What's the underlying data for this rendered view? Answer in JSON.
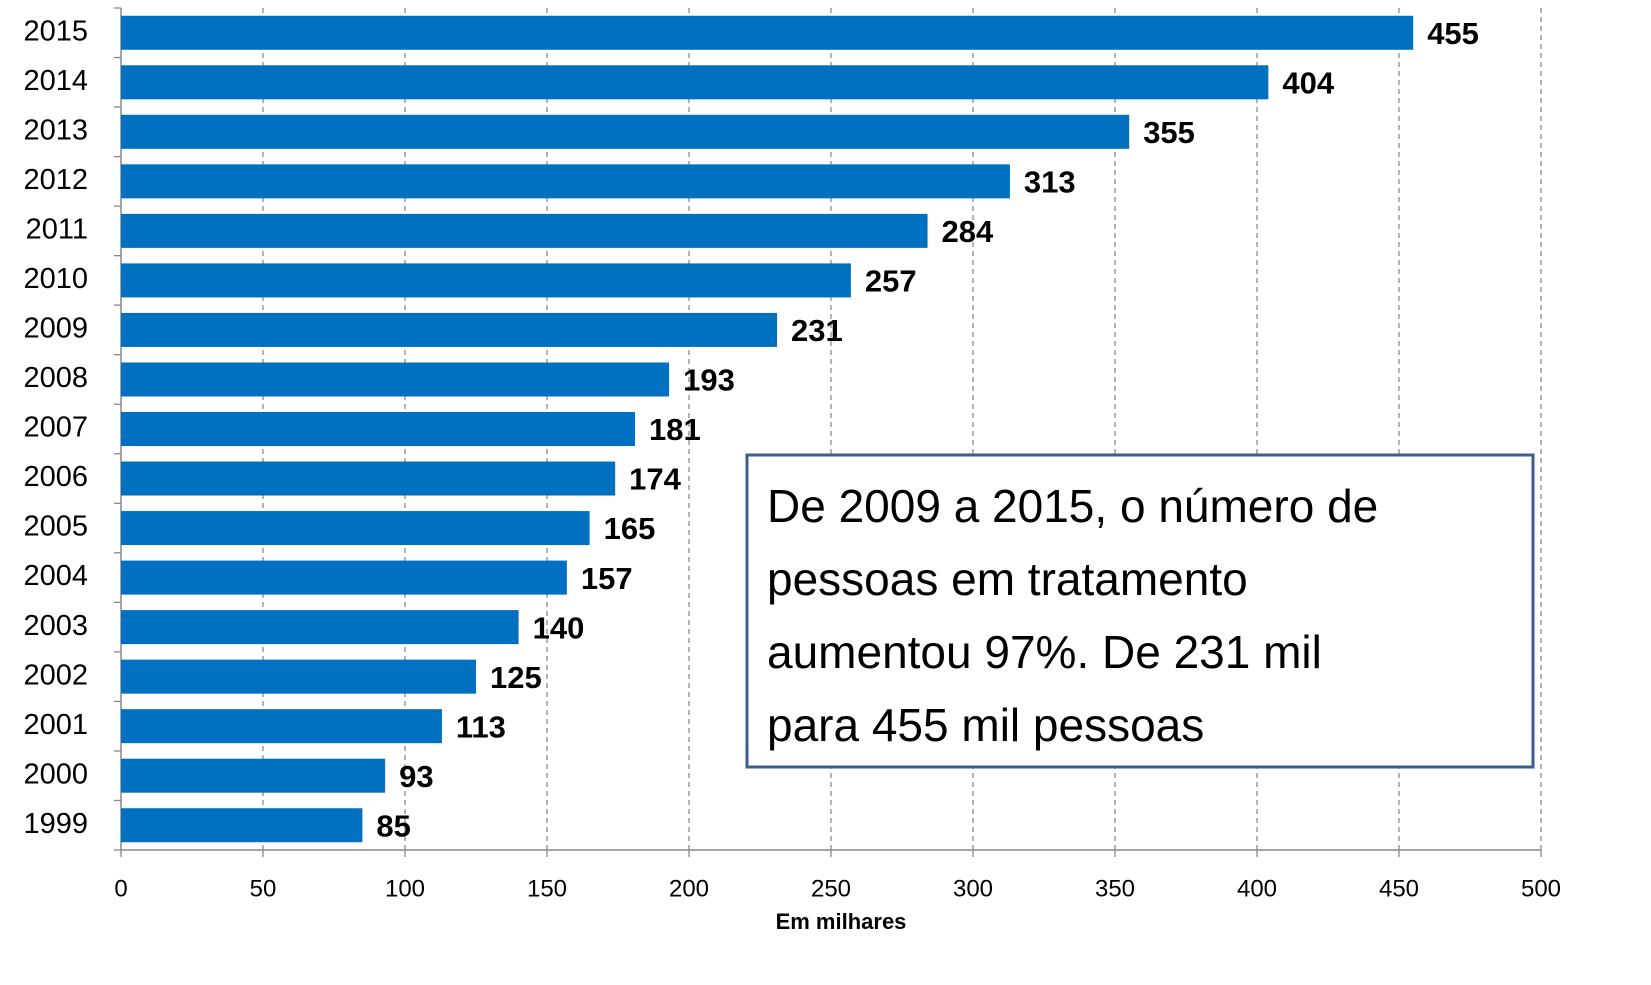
{
  "chart_data": {
    "type": "bar",
    "orientation": "horizontal",
    "categories": [
      "1999",
      "2000",
      "2001",
      "2002",
      "2003",
      "2004",
      "2005",
      "2006",
      "2007",
      "2008",
      "2009",
      "2010",
      "2011",
      "2012",
      "2013",
      "2014",
      "2015"
    ],
    "values": [
      85,
      93,
      113,
      125,
      140,
      157,
      165,
      174,
      181,
      193,
      231,
      257,
      284,
      313,
      355,
      404,
      455
    ],
    "color": "#0070c0",
    "xlim": [
      0,
      500
    ],
    "xticks": [
      0,
      50,
      100,
      150,
      200,
      250,
      300,
      350,
      400,
      450,
      500
    ],
    "x_label": "Em milhares",
    "grid": true,
    "annotation": [
      "De 2009 a 2015, o número de",
      "pessoas em tratamento",
      "aumentou 97%. De 231 mil",
      "para 455 mil pessoas"
    ]
  }
}
